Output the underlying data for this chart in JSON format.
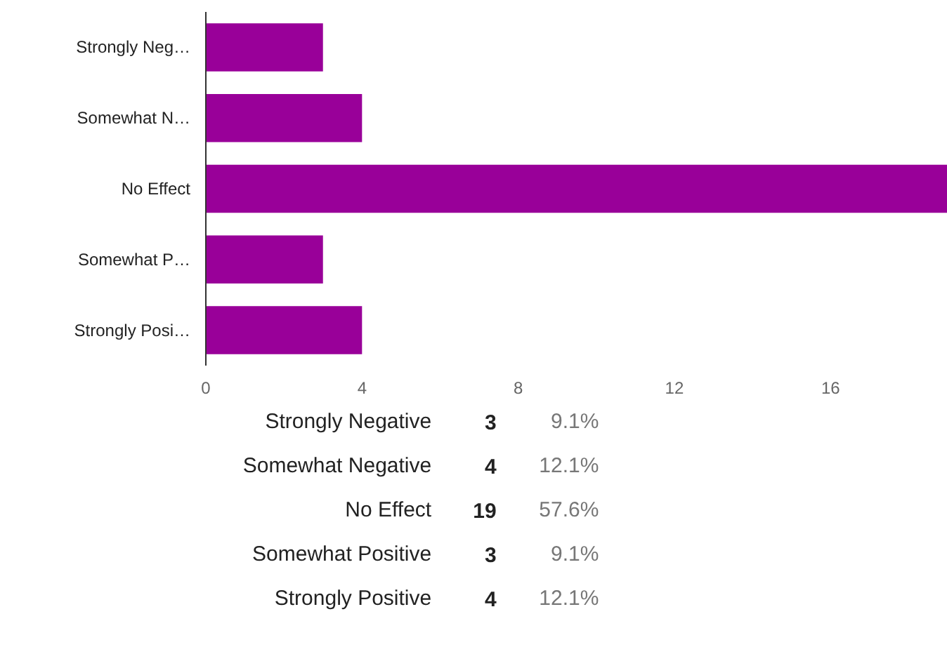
{
  "chart_data": {
    "type": "bar",
    "orientation": "horizontal",
    "categories": [
      "Strongly Neg…",
      "Somewhat N…",
      "No Effect",
      "Somewhat P…",
      "Strongly Posi…"
    ],
    "values": [
      3,
      4,
      19,
      3,
      4
    ],
    "color": "#990099",
    "xlim": [
      0,
      19
    ],
    "xticks": [
      0,
      4,
      8,
      12,
      16
    ],
    "grid": false,
    "annotations": [
      "Strongly Negative",
      "3",
      "9.1%",
      "Somewhat Negative",
      "4",
      "12.1%",
      "No Effect",
      "19",
      "57.6%",
      "Somewhat Positive",
      "3",
      "9.1%",
      "Strongly Positive",
      "4",
      "12.1%"
    ]
  }
}
